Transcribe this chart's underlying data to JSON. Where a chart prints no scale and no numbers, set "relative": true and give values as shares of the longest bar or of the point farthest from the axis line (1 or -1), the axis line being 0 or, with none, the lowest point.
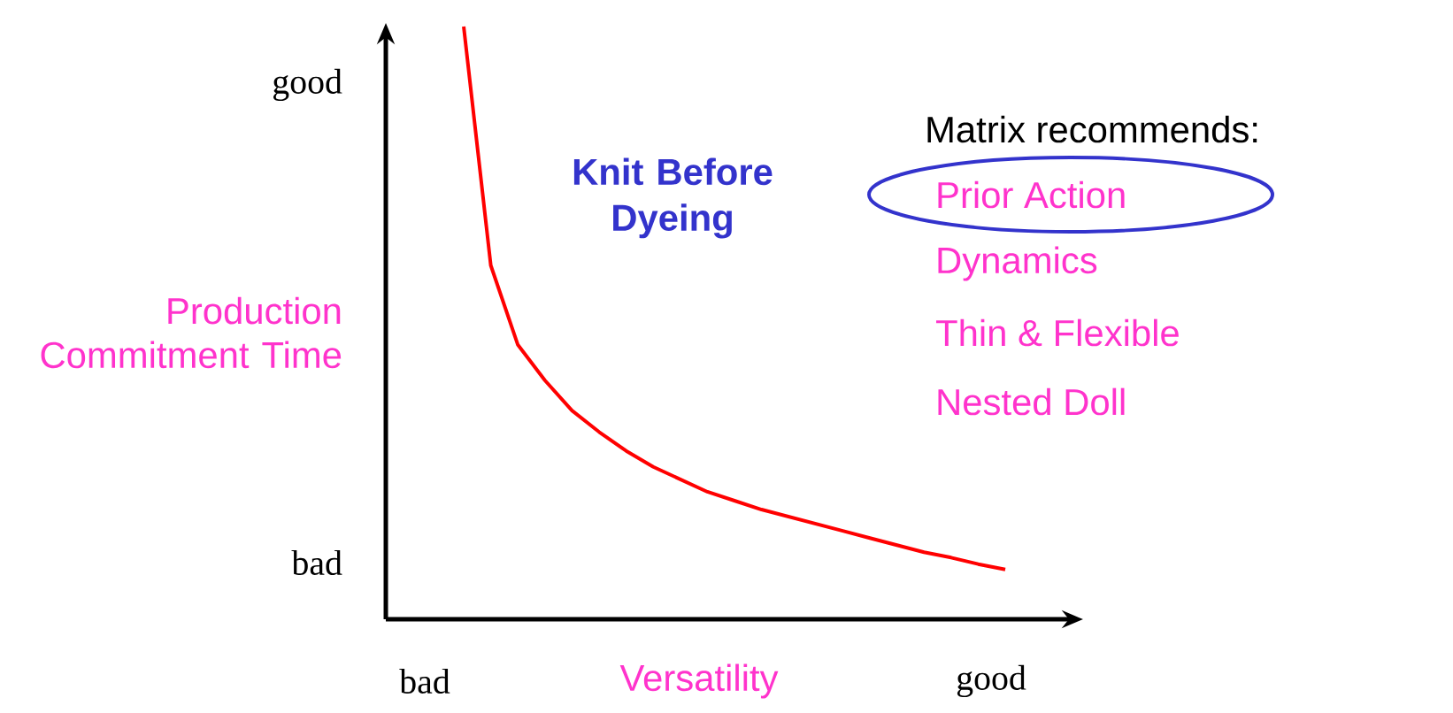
{
  "chart_data": {
    "type": "line",
    "relative": true,
    "xlabel": "Versatility",
    "ylabel": "Production Commitment Time",
    "categories": [
      null,
      null,
      null,
      null,
      null,
      null,
      null,
      null,
      null,
      null,
      null,
      null,
      null,
      null,
      null,
      null,
      null,
      null,
      null,
      null,
      null
    ],
    "values": [
      1.0,
      0.597,
      0.463,
      0.403,
      0.352,
      0.316,
      0.284,
      0.257,
      0.236,
      0.215,
      0.2,
      0.185,
      0.173,
      0.161,
      0.149,
      0.137,
      0.125,
      0.113,
      0.104,
      0.093,
      0.084
    ],
    "color": "#ff0000",
    "annotations": [
      "Knit Before Dyeing",
      "Matrix recommends:",
      "Prior Action",
      "Dynamics",
      "Thin & Flexible",
      "Nested Doll",
      "good",
      "bad",
      "bad",
      "good"
    ]
  }
}
